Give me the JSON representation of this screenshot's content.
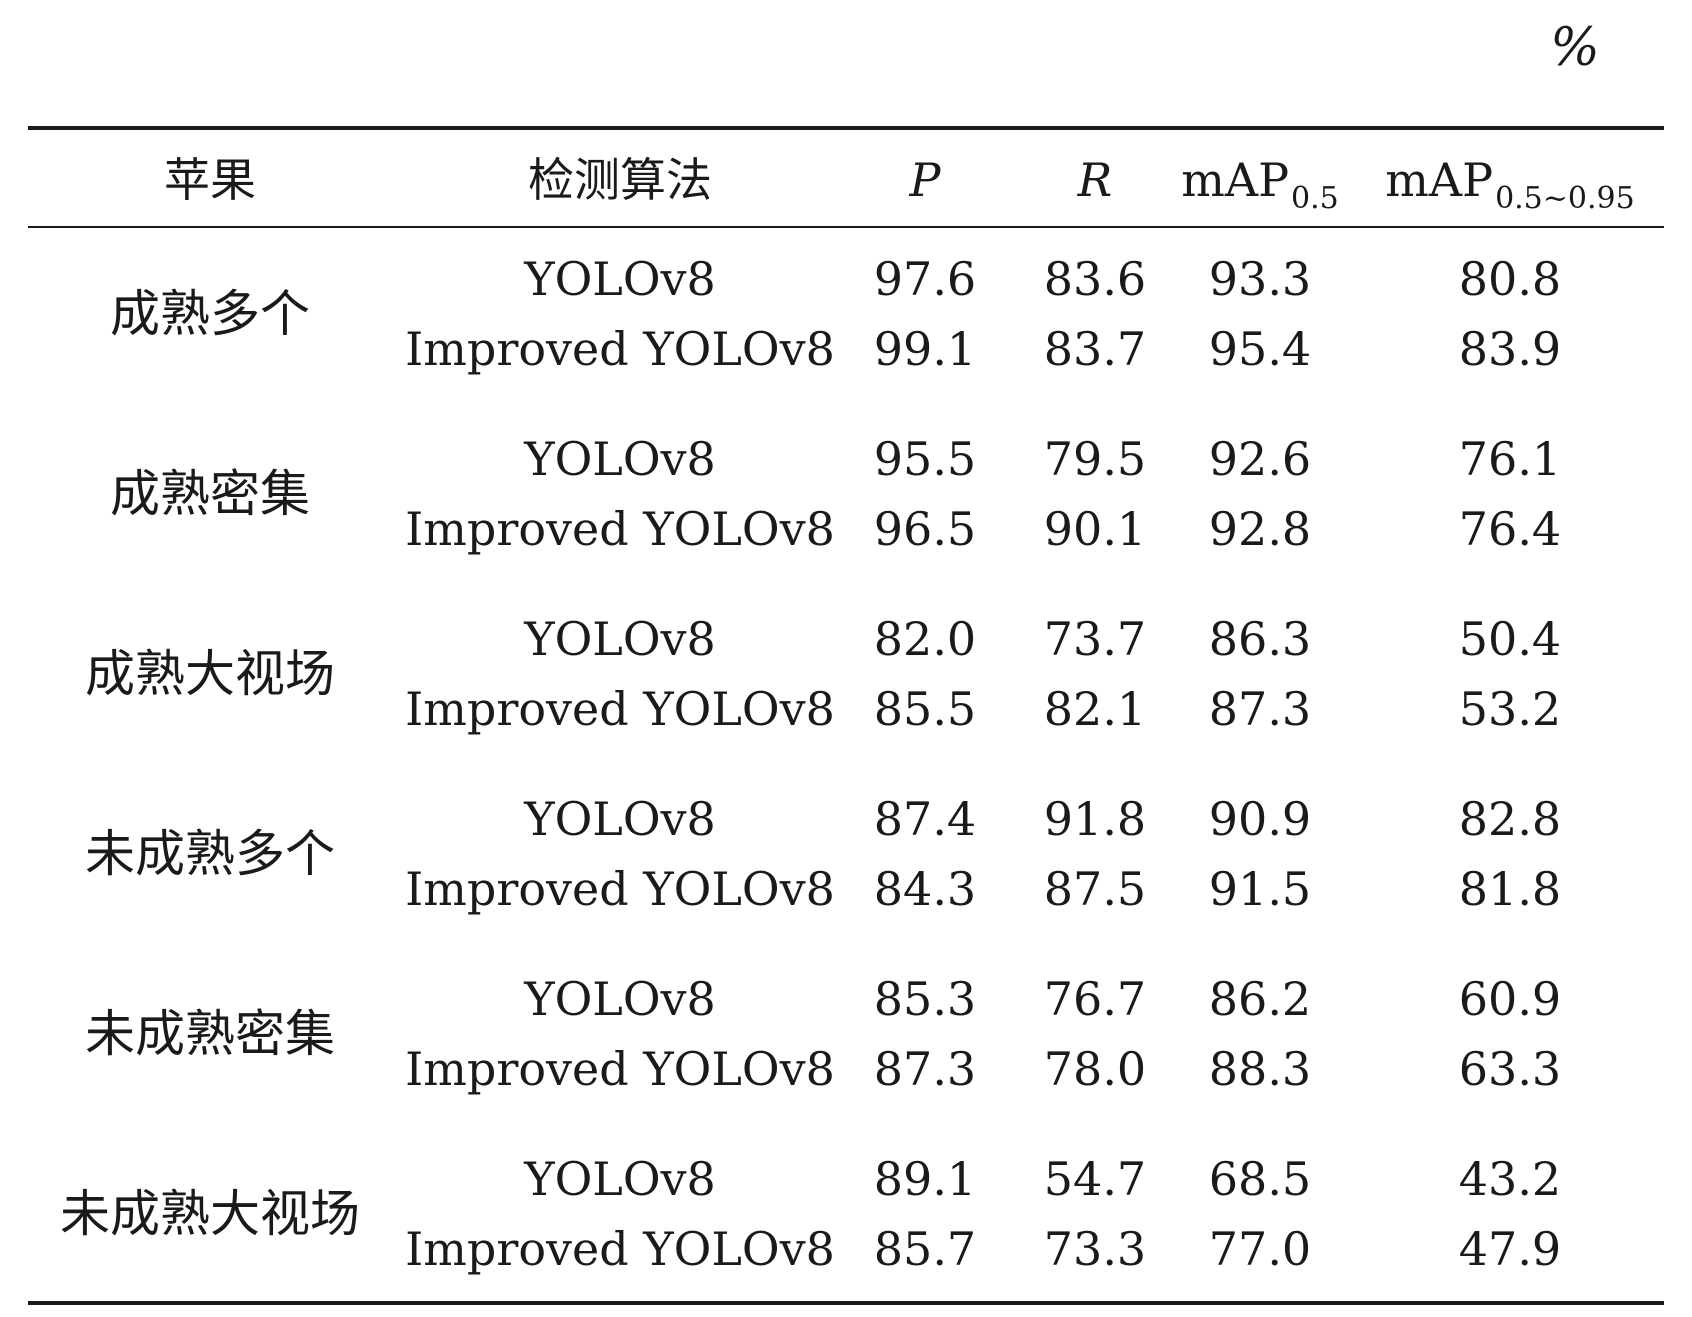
{
  "unit": "%",
  "headers": {
    "apple": "苹果",
    "algorithm": "检测算法",
    "p": "P",
    "r": "R",
    "map05": {
      "main": "mAP",
      "sub": "0.5"
    },
    "map0595": {
      "main": "mAP",
      "sub": "0.5~0.95"
    }
  },
  "groups": [
    {
      "apple": "成熟多个",
      "rows": [
        {
          "algorithm": "YOLOv8",
          "p": "97.6",
          "r": "83.6",
          "map05": "93.3",
          "map0595": "80.8"
        },
        {
          "algorithm": "Improved YOLOv8",
          "p": "99.1",
          "r": "83.7",
          "map05": "95.4",
          "map0595": "83.9"
        }
      ]
    },
    {
      "apple": "成熟密集",
      "rows": [
        {
          "algorithm": "YOLOv8",
          "p": "95.5",
          "r": "79.5",
          "map05": "92.6",
          "map0595": "76.1"
        },
        {
          "algorithm": "Improved YOLOv8",
          "p": "96.5",
          "r": "90.1",
          "map05": "92.8",
          "map0595": "76.4"
        }
      ]
    },
    {
      "apple": "成熟大视场",
      "rows": [
        {
          "algorithm": "YOLOv8",
          "p": "82.0",
          "r": "73.7",
          "map05": "86.3",
          "map0595": "50.4"
        },
        {
          "algorithm": "Improved YOLOv8",
          "p": "85.5",
          "r": "82.1",
          "map05": "87.3",
          "map0595": "53.2"
        }
      ]
    },
    {
      "apple": "未成熟多个",
      "rows": [
        {
          "algorithm": "YOLOv8",
          "p": "87.4",
          "r": "91.8",
          "map05": "90.9",
          "map0595": "82.8"
        },
        {
          "algorithm": "Improved YOLOv8",
          "p": "84.3",
          "r": "87.5",
          "map05": "91.5",
          "map0595": "81.8"
        }
      ]
    },
    {
      "apple": "未成熟密集",
      "rows": [
        {
          "algorithm": "YOLOv8",
          "p": "85.3",
          "r": "76.7",
          "map05": "86.2",
          "map0595": "60.9"
        },
        {
          "algorithm": "Improved YOLOv8",
          "p": "87.3",
          "r": "78.0",
          "map05": "88.3",
          "map0595": "63.3"
        }
      ]
    },
    {
      "apple": "未成熟大视场",
      "rows": [
        {
          "algorithm": "YOLOv8",
          "p": "89.1",
          "r": "54.7",
          "map05": "68.5",
          "map0595": "43.2"
        },
        {
          "algorithm": "Improved YOLOv8",
          "p": "85.7",
          "r": "73.3",
          "map05": "77.0",
          "map0595": "47.9"
        }
      ]
    }
  ]
}
